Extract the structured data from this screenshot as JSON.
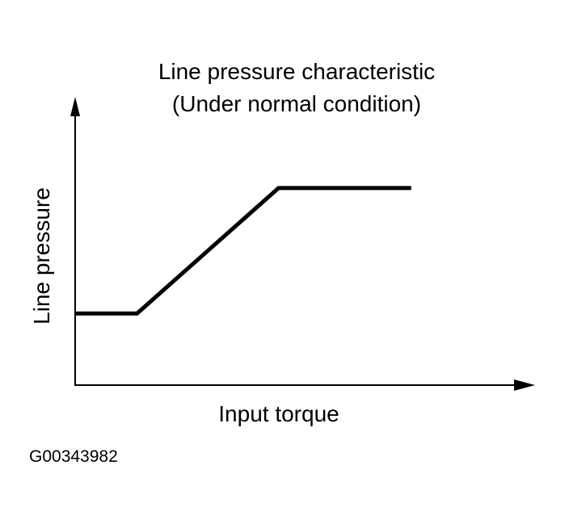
{
  "chart_data": {
    "type": "line",
    "title": "Line pressure characteristic",
    "subtitle": "(Under normal condition)",
    "xlabel": "Input torque",
    "ylabel": "Line pressure",
    "xlim": [
      0,
      100
    ],
    "ylim": [
      0,
      100
    ],
    "grid": false,
    "legend": "none",
    "series": [
      {
        "x": [
          0,
          14,
          46,
          76
        ],
        "y": [
          28,
          28,
          77,
          77
        ]
      }
    ]
  },
  "figure_id": "G00343982",
  "colors": {
    "line": "#000000",
    "axis": "#000000",
    "background": "#ffffff"
  }
}
